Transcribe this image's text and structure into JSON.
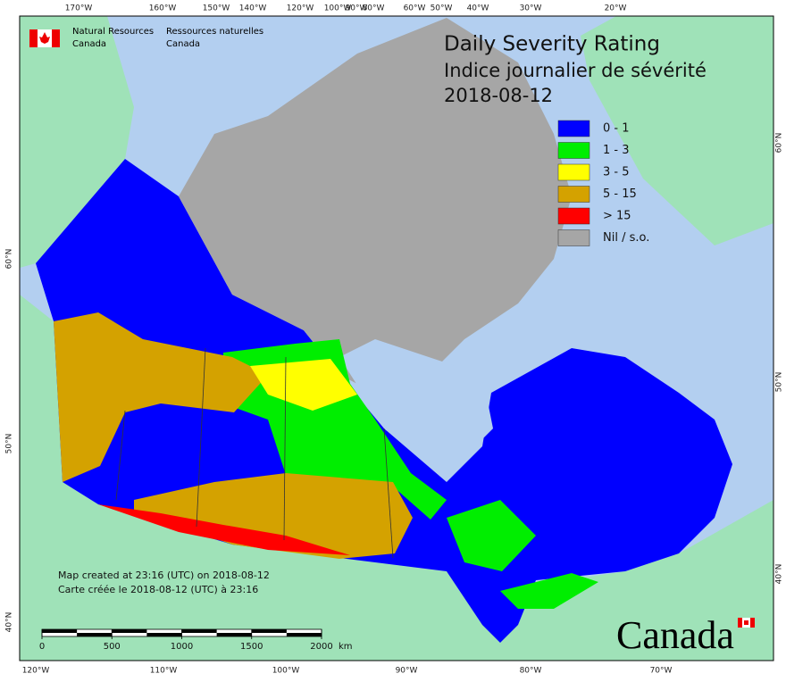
{
  "header": {
    "org_en": "Natural Resources",
    "org_en_2": "Canada",
    "org_fr": "Ressources naturelles",
    "org_fr_2": "Canada"
  },
  "title": {
    "line1": "Daily Severity Rating",
    "line2": "Indice journalier de sévérité",
    "date": "2018-08-12"
  },
  "legend": [
    {
      "label": "0 - 1",
      "color": "#0000ff"
    },
    {
      "label": "1 - 3",
      "color": "#00ee00"
    },
    {
      "label": "3 - 5",
      "color": "#ffff00"
    },
    {
      "label": "5 - 15",
      "color": "#d4a200"
    },
    {
      "label": "> 15",
      "color": "#ff0000"
    },
    {
      "label": "Nil / s.o.",
      "color": "#a6a6a6"
    }
  ],
  "graticule": {
    "top": [
      "170°W",
      "160°W",
      "150°W",
      "140°W",
      "120°W",
      "100°W",
      "90°W",
      "80°W",
      "60°W",
      "50°W",
      "40°W",
      "30°W",
      "20°W"
    ],
    "bottom": [
      "120°W",
      "110°W",
      "100°W",
      "90°W",
      "80°W",
      "70°W"
    ],
    "left": [
      "60°N",
      "50°N",
      "40°N"
    ],
    "right": [
      "60°N",
      "50°N",
      "40°N"
    ]
  },
  "credits": [
    "Map created at 23:16 (UTC) on 2018-08-12",
    "Carte créée le 2018-08-12 (UTC) à 23:16"
  ],
  "scale_bar": {
    "ticks": [
      0,
      500,
      1000,
      1500,
      2000
    ],
    "unit": "km"
  },
  "wordmark": "Canada"
}
